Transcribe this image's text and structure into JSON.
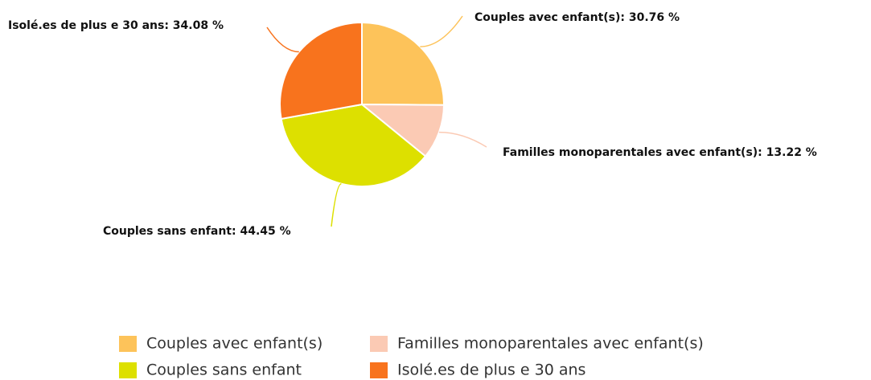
{
  "chart_data": {
    "type": "pie",
    "categories": [
      "Couples avec enfant(s)",
      "Familles monoparentales avec enfant(s)",
      "Couples sans enfant",
      "Isolé.es de plus e 30 ans"
    ],
    "values": [
      30.76,
      13.22,
      44.45,
      34.08
    ],
    "value_labels": [
      "Couples avec enfant(s): 30.76 %",
      "Familles monoparentales avec enfant(s): 13.22 %",
      "Couples sans enfant: 44.45 %",
      "Isolé.es de plus e 30 ans: 34.08 %"
    ],
    "colors": [
      "#fdc35a",
      "#fbcab4",
      "#dde000",
      "#f8731d"
    ],
    "legend": "bottom"
  }
}
